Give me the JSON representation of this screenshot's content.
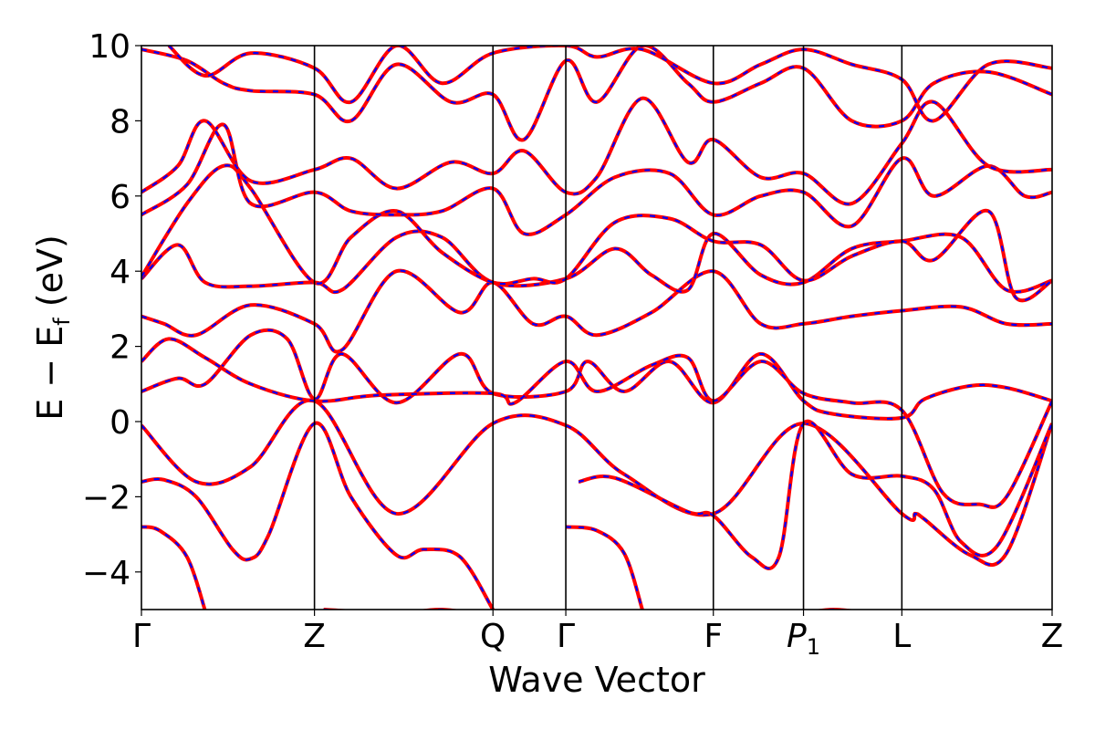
{
  "chart_data": {
    "type": "line",
    "title": "",
    "xlabel": "Wave Vector",
    "ylabel_main": "E − E",
    "ylabel_sub": "f",
    "ylabel_unit": " (eV)",
    "ylim": [
      -5,
      10
    ],
    "yticks": [
      -4,
      -2,
      0,
      2,
      4,
      6,
      8,
      10
    ],
    "ytick_labels": [
      "−4",
      "−2",
      "0",
      "2",
      "4",
      "6",
      "8",
      "10"
    ],
    "kpath": [
      {
        "label": "Γ",
        "sub": "",
        "italic": false,
        "x": 0.0
      },
      {
        "label": "Z",
        "sub": "",
        "italic": false,
        "x": 0.19
      },
      {
        "label": "Q",
        "sub": "",
        "italic": false,
        "x": 0.386
      },
      {
        "label": "Γ",
        "sub": "",
        "italic": false,
        "x": 0.466
      },
      {
        "label": "F",
        "sub": "",
        "italic": false,
        "x": 0.628
      },
      {
        "label": "P",
        "sub": "1",
        "italic": true,
        "x": 0.727
      },
      {
        "label": "L",
        "sub": "",
        "italic": false,
        "x": 0.835
      },
      {
        "label": "Z",
        "sub": "",
        "italic": false,
        "x": 1.0
      }
    ],
    "xlim": [
      0,
      1
    ],
    "legend": "none",
    "grid": false,
    "colors": {
      "dft": "#ff0000",
      "model": "#0000ff"
    },
    "series": [
      {
        "values": [
          [
            0,
            -2.8
          ],
          [
            0.02,
            -2.9
          ],
          [
            0.05,
            -3.6
          ],
          [
            0.072,
            -5.2
          ]
        ]
      },
      {
        "values": [
          [
            0,
            -1.6
          ],
          [
            0.025,
            -1.55
          ],
          [
            0.06,
            -2.0
          ],
          [
            0.1,
            -3.4
          ],
          [
            0.12,
            -3.65
          ],
          [
            0.14,
            -3.0
          ],
          [
            0.19,
            -0.05
          ],
          [
            0.23,
            -2.0
          ],
          [
            0.28,
            -3.55
          ],
          [
            0.31,
            -3.4
          ],
          [
            0.35,
            -3.6
          ],
          [
            0.386,
            -5.0
          ]
        ]
      },
      {
        "values": [
          [
            0,
            -0.1
          ],
          [
            0.06,
            -1.6
          ],
          [
            0.12,
            -1.2
          ],
          [
            0.19,
            0.55
          ],
          [
            0.28,
            -2.45
          ],
          [
            0.386,
            -0.05
          ],
          [
            0.466,
            -0.1
          ],
          [
            0.53,
            -1.4
          ],
          [
            0.628,
            -2.45
          ],
          [
            0.727,
            -0.05
          ],
          [
            0.835,
            -2.45
          ],
          [
            0.85,
            -2.45
          ],
          [
            0.86,
            -2.6
          ],
          [
            0.91,
            -3.55
          ],
          [
            0.95,
            -3.5
          ],
          [
            1.0,
            -0.05
          ]
        ]
      },
      {
        "values": [
          [
            0,
            0.8
          ],
          [
            0.04,
            1.15
          ],
          [
            0.07,
            1.0
          ],
          [
            0.12,
            2.3
          ],
          [
            0.16,
            2.2
          ],
          [
            0.19,
            0.6
          ],
          [
            0.22,
            1.8
          ],
          [
            0.28,
            0.5
          ],
          [
            0.35,
            1.8
          ],
          [
            0.386,
            0.75
          ],
          [
            0.466,
            0.8
          ],
          [
            0.49,
            1.6
          ],
          [
            0.53,
            0.8
          ],
          [
            0.58,
            1.6
          ],
          [
            0.628,
            0.5
          ],
          [
            0.68,
            1.8
          ],
          [
            0.727,
            0.55
          ],
          [
            0.76,
            0.2
          ],
          [
            0.835,
            0.1
          ],
          [
            0.86,
            0.6
          ],
          [
            0.91,
            0.95
          ],
          [
            0.95,
            0.9
          ],
          [
            1.0,
            0.55
          ]
        ]
      },
      {
        "values": [
          [
            0,
            1.6
          ],
          [
            0.03,
            2.2
          ],
          [
            0.07,
            1.7
          ],
          [
            0.12,
            1.0
          ],
          [
            0.19,
            0.55
          ],
          [
            0.26,
            0.7
          ],
          [
            0.386,
            0.75
          ],
          [
            0.41,
            0.5
          ],
          [
            0.466,
            1.6
          ],
          [
            0.5,
            0.8
          ],
          [
            0.56,
            1.5
          ],
          [
            0.6,
            1.7
          ],
          [
            0.628,
            0.55
          ],
          [
            0.68,
            1.6
          ],
          [
            0.727,
            0.75
          ],
          [
            0.78,
            0.5
          ],
          [
            0.835,
            0.3
          ],
          [
            0.88,
            -1.9
          ],
          [
            0.92,
            -2.2
          ],
          [
            0.95,
            -2.0
          ],
          [
            1.0,
            0.55
          ]
        ]
      },
      {
        "values": [
          [
            0,
            2.8
          ],
          [
            0.025,
            2.6
          ],
          [
            0.06,
            2.3
          ],
          [
            0.12,
            3.1
          ],
          [
            0.19,
            2.6
          ],
          [
            0.22,
            1.9
          ],
          [
            0.28,
            4.0
          ],
          [
            0.35,
            2.9
          ],
          [
            0.386,
            3.7
          ],
          [
            0.43,
            2.6
          ],
          [
            0.466,
            2.8
          ],
          [
            0.5,
            2.3
          ],
          [
            0.56,
            2.9
          ],
          [
            0.628,
            4.0
          ],
          [
            0.68,
            2.6
          ],
          [
            0.727,
            2.6
          ],
          [
            0.78,
            2.8
          ],
          [
            0.835,
            2.95
          ],
          [
            0.9,
            3.05
          ],
          [
            0.95,
            2.6
          ],
          [
            1.0,
            2.6
          ]
        ]
      },
      {
        "values": [
          [
            0,
            3.8
          ],
          [
            0.04,
            4.7
          ],
          [
            0.07,
            3.7
          ],
          [
            0.12,
            3.6
          ],
          [
            0.19,
            3.7
          ],
          [
            0.22,
            3.5
          ],
          [
            0.28,
            4.9
          ],
          [
            0.33,
            4.9
          ],
          [
            0.386,
            3.7
          ],
          [
            0.466,
            3.8
          ],
          [
            0.52,
            4.6
          ],
          [
            0.56,
            3.9
          ],
          [
            0.6,
            3.5
          ],
          [
            0.628,
            5.0
          ],
          [
            0.68,
            3.9
          ],
          [
            0.727,
            3.7
          ],
          [
            0.78,
            4.6
          ],
          [
            0.835,
            4.8
          ],
          [
            0.9,
            4.9
          ],
          [
            0.95,
            3.5
          ],
          [
            1.0,
            3.75
          ]
        ]
      },
      {
        "values": [
          [
            0,
            3.85
          ],
          [
            0.05,
            5.8
          ],
          [
            0.09,
            6.8
          ],
          [
            0.12,
            6.2
          ],
          [
            0.19,
            3.7
          ],
          [
            0.23,
            4.9
          ],
          [
            0.28,
            5.6
          ],
          [
            0.33,
            4.5
          ],
          [
            0.386,
            3.7
          ],
          [
            0.43,
            3.8
          ],
          [
            0.466,
            3.8
          ],
          [
            0.52,
            5.3
          ],
          [
            0.58,
            5.4
          ],
          [
            0.628,
            4.8
          ],
          [
            0.68,
            4.7
          ],
          [
            0.727,
            3.75
          ],
          [
            0.78,
            4.4
          ],
          [
            0.835,
            4.8
          ],
          [
            0.87,
            4.3
          ],
          [
            0.93,
            5.6
          ],
          [
            0.96,
            3.3
          ],
          [
            1.0,
            3.75
          ]
        ]
      },
      {
        "values": [
          [
            0,
            5.5
          ],
          [
            0.05,
            6.3
          ],
          [
            0.09,
            7.9
          ],
          [
            0.12,
            5.8
          ],
          [
            0.19,
            6.1
          ],
          [
            0.23,
            5.6
          ],
          [
            0.28,
            5.5
          ],
          [
            0.33,
            5.6
          ],
          [
            0.386,
            6.2
          ],
          [
            0.42,
            5.0
          ],
          [
            0.466,
            5.5
          ],
          [
            0.52,
            6.5
          ],
          [
            0.58,
            6.6
          ],
          [
            0.628,
            5.5
          ],
          [
            0.68,
            6.0
          ],
          [
            0.727,
            6.1
          ],
          [
            0.78,
            5.2
          ],
          [
            0.835,
            7.0
          ],
          [
            0.87,
            6.0
          ],
          [
            0.93,
            6.8
          ],
          [
            0.97,
            6.0
          ],
          [
            1.0,
            6.1
          ]
        ]
      },
      {
        "values": [
          [
            0,
            6.1
          ],
          [
            0.04,
            6.8
          ],
          [
            0.07,
            8.0
          ],
          [
            0.12,
            6.4
          ],
          [
            0.19,
            6.7
          ],
          [
            0.23,
            7.0
          ],
          [
            0.28,
            6.2
          ],
          [
            0.34,
            6.9
          ],
          [
            0.386,
            6.6
          ],
          [
            0.42,
            7.2
          ],
          [
            0.466,
            6.1
          ],
          [
            0.5,
            6.5
          ],
          [
            0.55,
            8.6
          ],
          [
            0.6,
            6.9
          ],
          [
            0.628,
            7.5
          ],
          [
            0.68,
            6.5
          ],
          [
            0.727,
            6.6
          ],
          [
            0.78,
            5.8
          ],
          [
            0.835,
            7.4
          ],
          [
            0.87,
            8.5
          ],
          [
            0.93,
            6.8
          ],
          [
            1.0,
            6.7
          ]
        ]
      },
      {
        "values": [
          [
            0,
            9.9
          ],
          [
            0.05,
            9.6
          ],
          [
            0.09,
            9.0
          ],
          [
            0.12,
            8.8
          ],
          [
            0.19,
            8.7
          ],
          [
            0.23,
            8.0
          ],
          [
            0.28,
            9.5
          ],
          [
            0.34,
            8.5
          ],
          [
            0.386,
            8.7
          ],
          [
            0.42,
            7.5
          ],
          [
            0.466,
            9.6
          ],
          [
            0.5,
            8.5
          ],
          [
            0.55,
            10.0
          ],
          [
            0.6,
            9.0
          ],
          [
            0.628,
            8.5
          ],
          [
            0.68,
            9.0
          ],
          [
            0.727,
            9.4
          ],
          [
            0.78,
            8.0
          ],
          [
            0.835,
            8.0
          ],
          [
            0.87,
            9.0
          ],
          [
            0.93,
            9.3
          ],
          [
            1.0,
            8.7
          ]
        ]
      },
      {
        "values": [
          [
            0.03,
            10.0
          ],
          [
            0.07,
            9.2
          ],
          [
            0.12,
            9.8
          ],
          [
            0.19,
            9.4
          ],
          [
            0.23,
            8.5
          ],
          [
            0.28,
            10.0
          ],
          [
            0.33,
            9.0
          ],
          [
            0.386,
            9.8
          ],
          [
            0.466,
            10.0
          ],
          [
            0.5,
            9.7
          ],
          [
            0.55,
            9.9
          ],
          [
            0.628,
            9.0
          ],
          [
            0.68,
            9.5
          ],
          [
            0.727,
            9.9
          ],
          [
            0.78,
            9.5
          ],
          [
            0.835,
            9.1
          ],
          [
            0.87,
            8.0
          ],
          [
            0.93,
            9.5
          ],
          [
            1.0,
            9.4
          ]
        ]
      },
      {
        "values": [
          [
            0.2,
            -5.0
          ],
          [
            0.28,
            -5.1
          ],
          [
            0.33,
            -5.0
          ],
          [
            0.39,
            -5.2
          ]
        ]
      },
      {
        "values": [
          [
            0.466,
            -2.8
          ],
          [
            0.5,
            -2.9
          ],
          [
            0.53,
            -3.5
          ],
          [
            0.55,
            -5.0
          ]
        ]
      },
      {
        "values": [
          [
            0.48,
            -1.6
          ],
          [
            0.52,
            -1.5
          ],
          [
            0.6,
            -2.4
          ],
          [
            0.628,
            -2.5
          ],
          [
            0.67,
            -3.6
          ],
          [
            0.7,
            -3.6
          ],
          [
            0.727,
            -0.05
          ],
          [
            0.78,
            -1.4
          ],
          [
            0.835,
            -1.45
          ],
          [
            0.87,
            -1.8
          ],
          [
            0.9,
            -3.2
          ],
          [
            0.94,
            -3.3
          ],
          [
            1.0,
            -0.05
          ]
        ]
      },
      {
        "values": [
          [
            0.727,
            -5.1
          ],
          [
            0.76,
            -5.0
          ],
          [
            0.8,
            -5.1
          ]
        ]
      }
    ]
  }
}
